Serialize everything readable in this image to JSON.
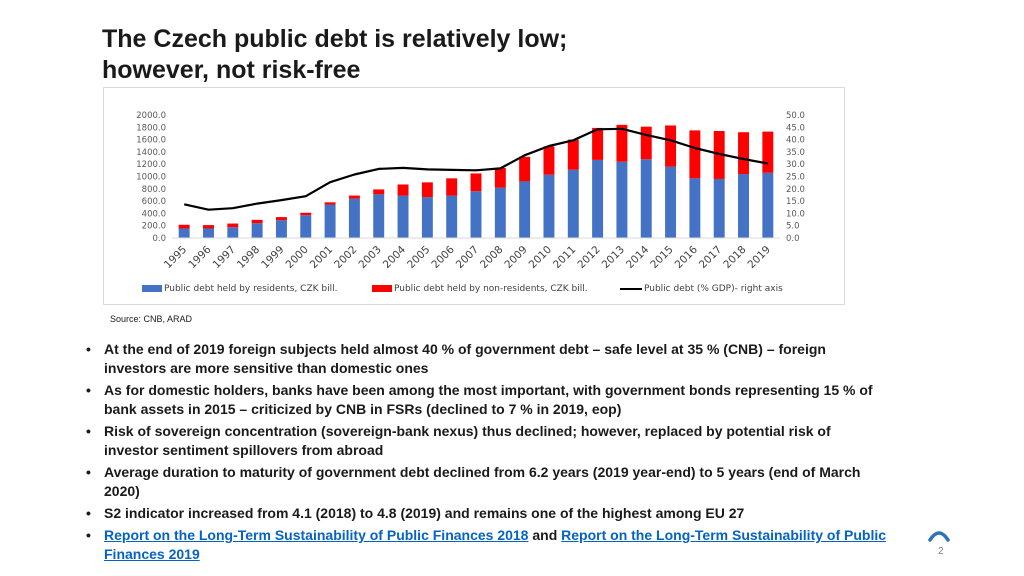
{
  "title": {
    "line1": "The Czech public debt is relatively low;",
    "line2": "however, not risk-free"
  },
  "chart_data": {
    "type": "bar",
    "stacked": true,
    "categories": [
      "1995",
      "1996",
      "1997",
      "1998",
      "1999",
      "2000",
      "2001",
      "2002",
      "2003",
      "2004",
      "2005",
      "2006",
      "2007",
      "2008",
      "2009",
      "2010",
      "2011",
      "2012",
      "2013",
      "2014",
      "2015",
      "2016",
      "2017",
      "2018",
      "2019"
    ],
    "series": [
      {
        "name": "Public debt held by residents, CZK bill.",
        "kind": "bar",
        "axis": "left",
        "color": "#4472c4",
        "values": [
          155,
          155,
          175,
          240,
          290,
          370,
          545,
          640,
          710,
          690,
          665,
          690,
          760,
          820,
          920,
          1030,
          1110,
          1270,
          1240,
          1280,
          1160,
          970,
          960,
          1040,
          1060
        ]
      },
      {
        "name": "Public debt held by non-residents, CZK bill.",
        "kind": "bar",
        "axis": "left",
        "color": "#ff0000",
        "values": [
          60,
          55,
          60,
          55,
          50,
          40,
          35,
          50,
          80,
          180,
          240,
          280,
          290,
          320,
          400,
          460,
          490,
          520,
          600,
          530,
          670,
          780,
          780,
          680,
          670
        ]
      },
      {
        "name": "Public debt (% GDP)- right axis",
        "kind": "line",
        "axis": "right",
        "color": "#000000",
        "values": [
          13.7,
          11.5,
          12.1,
          14.0,
          15.4,
          17.0,
          22.7,
          25.8,
          28.1,
          28.5,
          27.9,
          27.7,
          27.5,
          28.3,
          33.6,
          37.4,
          39.7,
          44.2,
          44.4,
          41.9,
          39.7,
          36.6,
          34.2,
          32.1,
          30.3
        ]
      }
    ],
    "ylim_left": [
      0,
      2000
    ],
    "yticks_left": [
      "0.0",
      "200.0",
      "400.0",
      "600.0",
      "800.0",
      "1000.0",
      "1200.0",
      "1400.0",
      "1600.0",
      "1800.0",
      "2000.0"
    ],
    "ylim_right": [
      0,
      50
    ],
    "yticks_right": [
      "0.0",
      "5.0",
      "10.0",
      "15.0",
      "20.0",
      "25.0",
      "30.0",
      "35.0",
      "40.0",
      "45.0",
      "50.0"
    ],
    "grid": false,
    "legend_position": "bottom"
  },
  "source": "Source: CNB, ARAD",
  "bullets": [
    {
      "text": "At the end of 2019 foreign subjects held almost 40 % of government debt – safe level at 35 % (CNB) – foreign investors are more sensitive than domestic ones"
    },
    {
      "text": "As for domestic holders, banks have been among the most important, with government bonds representing 15 % of bank assets in 2015 – criticized by CNB in FSRs (declined to 7 % in 2019, eop)"
    },
    {
      "text": "Risk of sovereign concentration (sovereign-bank nexus) thus declined; however, replaced by potential risk of investor sentiment spillovers from abroad"
    },
    {
      "text": "Average duration to maturity of government debt declined from 6.2 years (2019 year-end) to 5 years (end of March 2020)"
    },
    {
      "text": "S2 indicator increased from 4.1 (2018) to 4.8 (2019) and remains one of the highest among EU 27"
    }
  ],
  "links_bullet": {
    "link1": "Report on the Long-Term Sustainability of Public Finances 2018",
    "connector": " and ",
    "link2": "Report on the Long-Term Sustainability of Public Finances 2019"
  },
  "bullet_symbol": "•",
  "page_number": "2",
  "colors": {
    "accent": "#2e75b6",
    "link": "#0563c1"
  }
}
